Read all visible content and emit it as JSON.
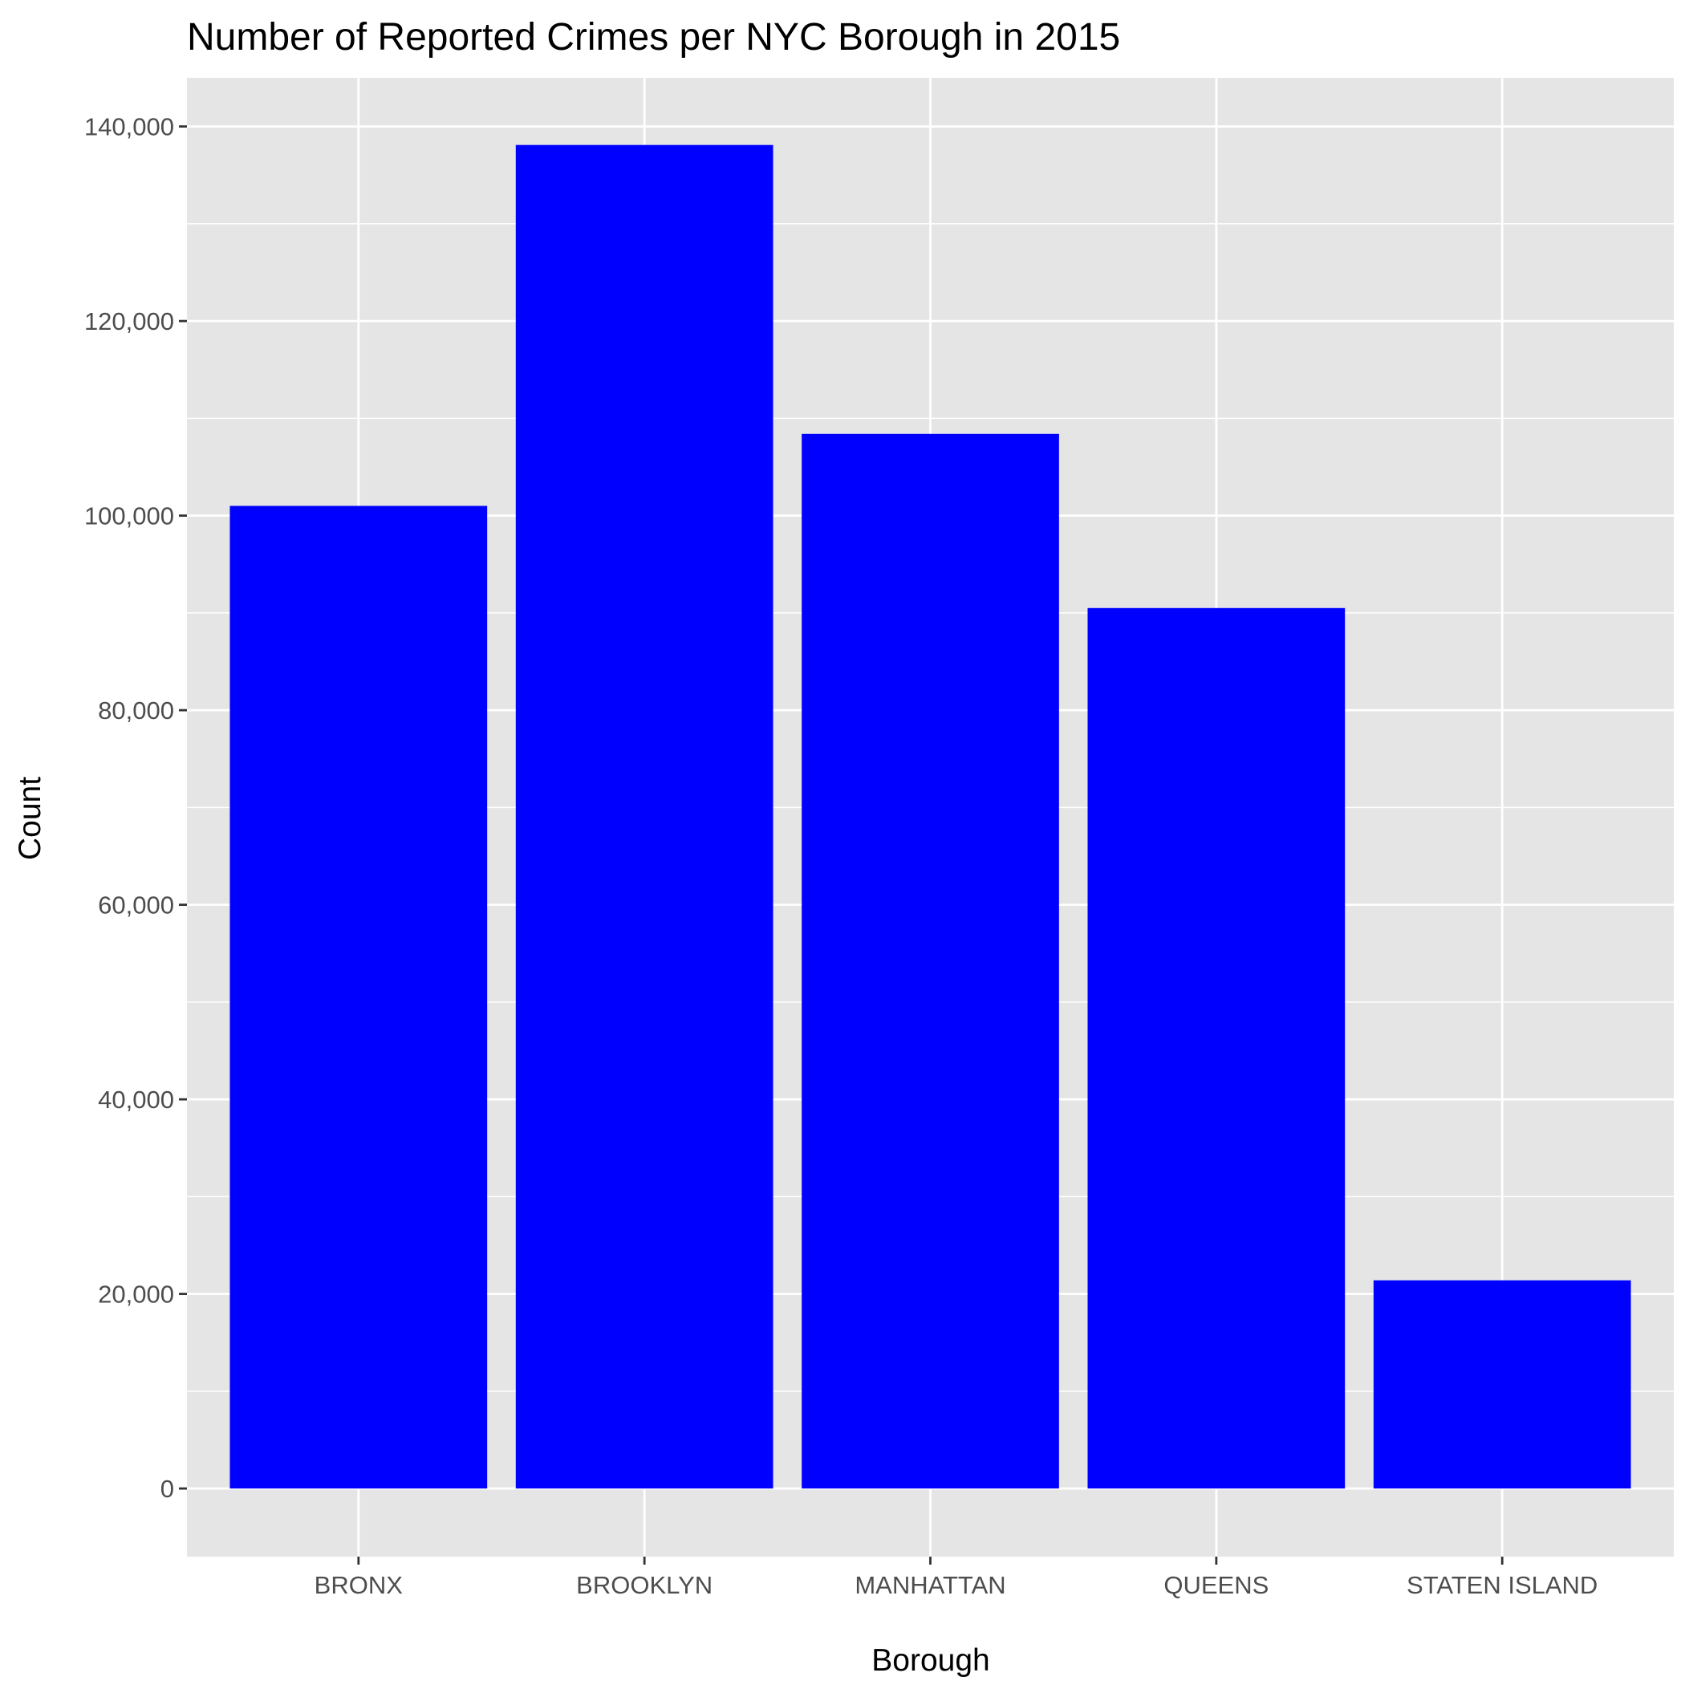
{
  "chart_data": {
    "type": "bar",
    "title": "Number of Reported Crimes per NYC Borough in 2015",
    "xlabel": "Borough",
    "ylabel": "Count",
    "categories": [
      "BRONX",
      "BROOKLYN",
      "MANHATTAN",
      "QUEENS",
      "STATEN ISLAND"
    ],
    "values": [
      101000,
      138100,
      108400,
      90500,
      21400
    ],
    "ylim": [
      -7000,
      145000
    ],
    "yticks": [
      0,
      20000,
      40000,
      60000,
      80000,
      100000,
      120000,
      140000
    ],
    "ytick_labels": [
      "0",
      "20,000",
      "40,000",
      "60,000",
      "80,000",
      "100,000",
      "120,000",
      "140,000"
    ],
    "grid": true,
    "colors": {
      "bar": "#0000ff",
      "panel_background": "#e5e5e5",
      "grid": "#ffffff"
    }
  }
}
